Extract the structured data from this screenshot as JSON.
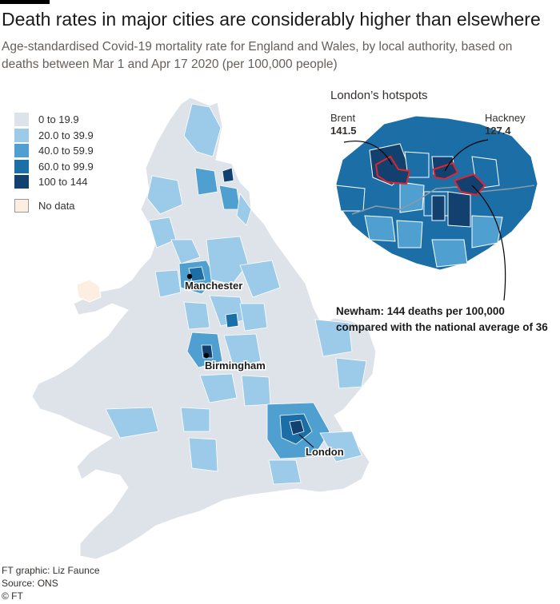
{
  "title": "Death rates in major cities are considerably higher than elsewhere",
  "subtitle": "Age-standardised Covid-19 mortality rate for England and Wales, by local authority, based on deaths between Mar 1 and Apr 17 2020 (per 100,000 people)",
  "legend": {
    "items": [
      {
        "label": "0 to 19.9",
        "color": "#dde3e8"
      },
      {
        "label": "20.0 to 39.9",
        "color": "#9ccbea"
      },
      {
        "label": "40.0 to 59.9",
        "color": "#4f9fd0"
      },
      {
        "label": "60.0 to 99.9",
        "color": "#1c6ea6"
      },
      {
        "label": "100 to 144",
        "color": "#12406f"
      }
    ],
    "no_data": {
      "label": "No data",
      "color": "#fdeee2"
    }
  },
  "map": {
    "cities": [
      {
        "name": "Manchester"
      },
      {
        "name": "Birmingham"
      },
      {
        "name": "London"
      }
    ]
  },
  "inset": {
    "title": "London’s hotspots",
    "callouts": [
      {
        "name": "Brent",
        "value": "141.5"
      },
      {
        "name": "Hackney",
        "value": "127.4"
      }
    ],
    "newham_note": "Newham: 144 deaths per 100,000 compared with the national average of 36"
  },
  "credits": {
    "graphic": "FT graphic: Liz Faunce",
    "source": "Source: ONS",
    "copyright": "© FT"
  }
}
